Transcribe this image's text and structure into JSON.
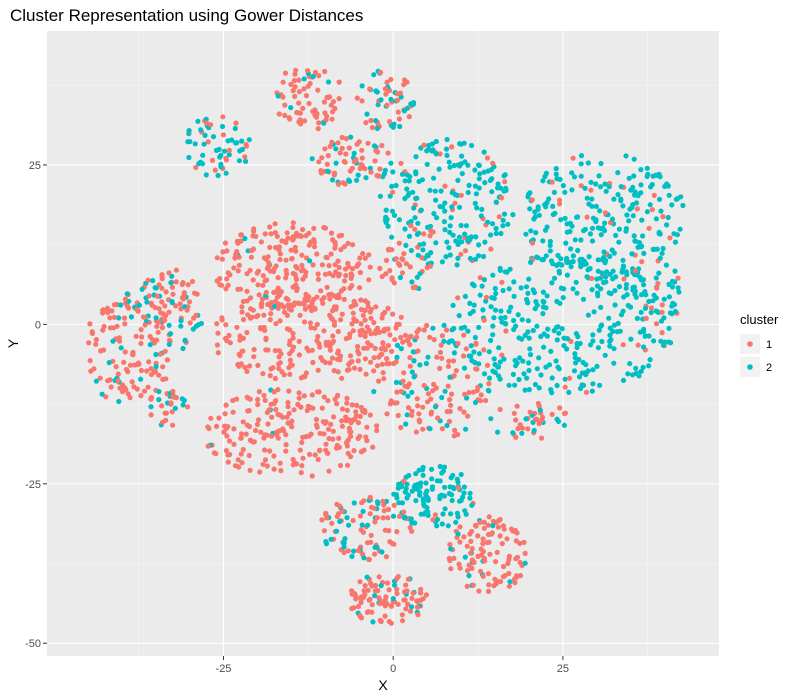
{
  "chart_data": {
    "type": "scatter",
    "title": "Cluster Representation using Gower Distances",
    "xlabel": "X",
    "ylabel": "Y",
    "xlim": [
      -51,
      48
    ],
    "ylim": [
      -52,
      46
    ],
    "x_ticks": [
      -25,
      0,
      25
    ],
    "y_ticks": [
      -50,
      -25,
      0,
      25
    ],
    "grid": true,
    "legend_position": "right",
    "legend_title": "cluster",
    "series": [
      {
        "name": "1",
        "color": "#F8766D"
      },
      {
        "name": "2",
        "color": "#00BFC4"
      }
    ],
    "clusters": [
      {
        "cx": -12.5,
        "cy": 35.5,
        "rx": 5.5,
        "ry": 5,
        "share": [
          0.9,
          0.1
        ],
        "n": 70
      },
      {
        "cx": -1,
        "cy": 35,
        "rx": 4.5,
        "ry": 5,
        "share": [
          0.6,
          0.4
        ],
        "n": 60
      },
      {
        "cx": -26,
        "cy": 28,
        "rx": 5,
        "ry": 5,
        "share": [
          0.3,
          0.7
        ],
        "n": 60
      },
      {
        "cx": -6,
        "cy": 25.5,
        "rx": 6,
        "ry": 4,
        "share": [
          0.7,
          0.3
        ],
        "n": 70
      },
      {
        "cx": 8,
        "cy": 19,
        "rx": 10,
        "ry": 10,
        "share": [
          0.12,
          0.88
        ],
        "n": 210
      },
      {
        "cx": 2,
        "cy": 9,
        "rx": 4,
        "ry": 4,
        "share": [
          0.8,
          0.2
        ],
        "n": 40
      },
      {
        "cx": 31,
        "cy": 17,
        "rx": 12,
        "ry": 10,
        "share": [
          0.1,
          0.9
        ],
        "n": 240
      },
      {
        "cx": 25,
        "cy": 0,
        "rx": 17,
        "ry": 11,
        "share": [
          0.05,
          0.95
        ],
        "n": 330
      },
      {
        "cx": 38,
        "cy": 5,
        "rx": 5,
        "ry": 5,
        "share": [
          0.3,
          0.7
        ],
        "n": 40
      },
      {
        "cx": 6,
        "cy": -9,
        "rx": 9,
        "ry": 9,
        "share": [
          0.75,
          0.25
        ],
        "n": 150
      },
      {
        "cx": 20,
        "cy": -15,
        "rx": 6,
        "ry": 3,
        "share": [
          0.6,
          0.4
        ],
        "n": 40
      },
      {
        "cx": -15,
        "cy": 9,
        "rx": 12,
        "ry": 7,
        "share": [
          0.97,
          0.03
        ],
        "n": 230
      },
      {
        "cx": -12,
        "cy": -2,
        "rx": 15,
        "ry": 7,
        "share": [
          1.0,
          0.0
        ],
        "n": 260
      },
      {
        "cx": -15,
        "cy": -17,
        "rx": 13,
        "ry": 7,
        "share": [
          0.98,
          0.02
        ],
        "n": 220
      },
      {
        "cx": -39,
        "cy": -4,
        "rx": 6.5,
        "ry": 9,
        "share": [
          0.85,
          0.15
        ],
        "n": 130
      },
      {
        "cx": -33,
        "cy": 2,
        "rx": 5,
        "ry": 7,
        "share": [
          0.65,
          0.35
        ],
        "n": 90
      },
      {
        "cx": -33,
        "cy": -13,
        "rx": 3,
        "ry": 3,
        "share": [
          0.5,
          0.5
        ],
        "n": 30
      },
      {
        "cx": 6,
        "cy": -27,
        "rx": 6,
        "ry": 5,
        "share": [
          0.1,
          0.9
        ],
        "n": 110
      },
      {
        "cx": -4,
        "cy": -32,
        "rx": 7,
        "ry": 5,
        "share": [
          0.6,
          0.4
        ],
        "n": 100
      },
      {
        "cx": 14,
        "cy": -36,
        "rx": 6,
        "ry": 6,
        "share": [
          0.92,
          0.08
        ],
        "n": 110
      },
      {
        "cx": -1,
        "cy": -43,
        "rx": 6,
        "ry": 4,
        "share": [
          0.85,
          0.15
        ],
        "n": 100
      }
    ]
  }
}
